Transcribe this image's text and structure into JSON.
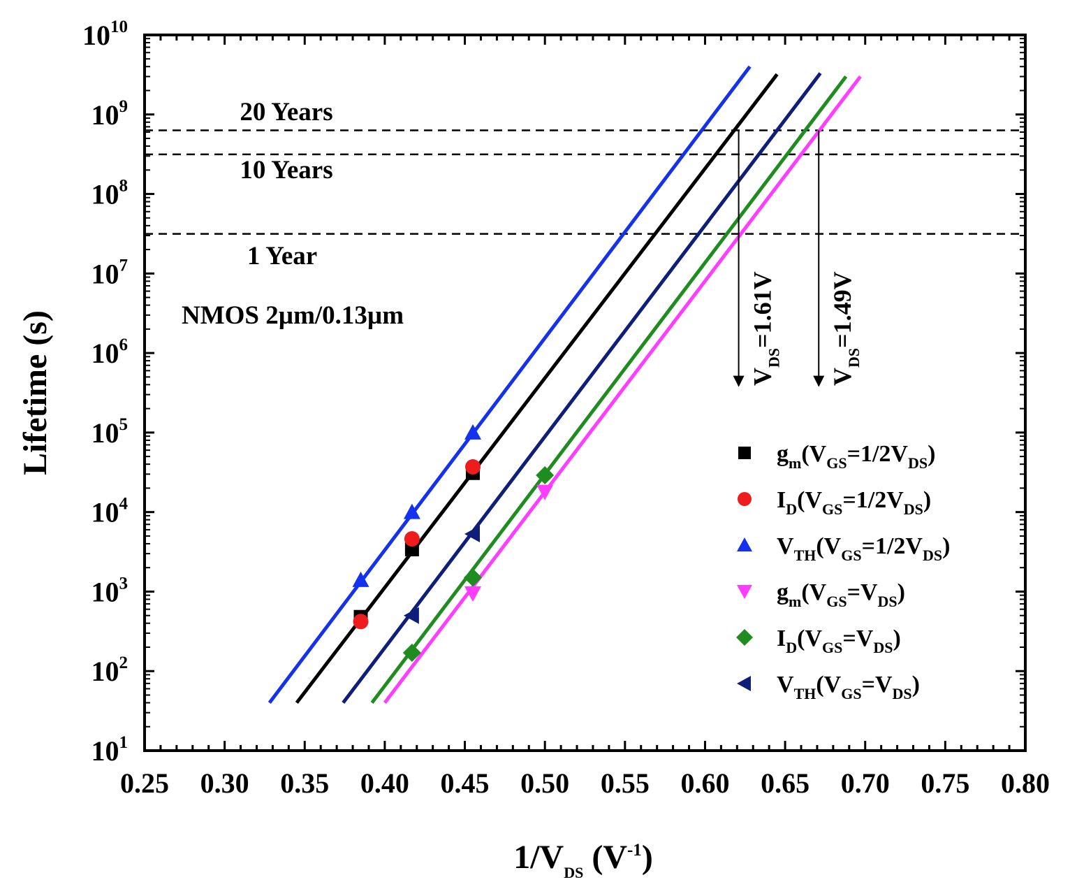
{
  "chart_data": {
    "type": "line",
    "xlabel": "1/V",
    "xlabel_sub": "DS",
    "xlabel_unit_prefix": "(V",
    "xlabel_unit_exp": "-1",
    "xlabel_unit_suffix": ")",
    "ylabel": "Lifetime (s)",
    "xlim": [
      0.25,
      0.8
    ],
    "ylim": [
      10,
      10000000000
    ],
    "y_scale": "log",
    "grid": false,
    "x_ticks": [
      "0.25",
      "0.30",
      "0.35",
      "0.40",
      "0.45",
      "0.50",
      "0.55",
      "0.60",
      "0.65",
      "0.70",
      "0.75",
      "0.80"
    ],
    "y_ticks": [
      {
        "base": "10",
        "exp": "1",
        "value": 10
      },
      {
        "base": "10",
        "exp": "2",
        "value": 100
      },
      {
        "base": "10",
        "exp": "3",
        "value": 1000
      },
      {
        "base": "10",
        "exp": "4",
        "value": 10000
      },
      {
        "base": "10",
        "exp": "5",
        "value": 100000
      },
      {
        "base": "10",
        "exp": "6",
        "value": 1000000
      },
      {
        "base": "10",
        "exp": "7",
        "value": 10000000
      },
      {
        "base": "10",
        "exp": "8",
        "value": 100000000
      },
      {
        "base": "10",
        "exp": "9",
        "value": 1000000000
      },
      {
        "base": "10",
        "exp": "10",
        "value": 10000000000
      }
    ],
    "device_label": "NMOS 2µm/0.13µm",
    "reference_lines": [
      {
        "label": "20 Years",
        "y": 631000000
      },
      {
        "label": "10 Years",
        "y": 315000000
      },
      {
        "label": "1 Year",
        "y": 31500000
      }
    ],
    "arrows": [
      {
        "x": 0.621,
        "y_from": 631000000,
        "y_to": 1000000,
        "label_main": "V",
        "label_sub": "DS",
        "label_rest": "=1.61V"
      },
      {
        "x": 0.671,
        "y_from": 631000000,
        "y_to": 1000000,
        "label_main": "V",
        "label_sub": "DS",
        "label_rest": "=1.49V"
      }
    ],
    "series": [
      {
        "name": "gm(VGS=1/2VDS)",
        "legend_parts": [
          "g",
          "m",
          "(V",
          "GS",
          "=1/2V",
          "DS",
          ")"
        ],
        "color": "#000000",
        "marker": "square",
        "points": [
          [
            0.385,
            480
          ],
          [
            0.417,
            3400
          ],
          [
            0.455,
            31000
          ]
        ],
        "fit": [
          [
            0.345,
            40
          ],
          [
            0.645,
            3200000000
          ]
        ]
      },
      {
        "name": "ID(VGS=1/2VDS)",
        "legend_parts": [
          "I",
          "D",
          "(V",
          "GS",
          "=1/2V",
          "DS",
          ")"
        ],
        "color": "#ee1c1c",
        "marker": "circle",
        "points": [
          [
            0.385,
            420
          ],
          [
            0.417,
            4600
          ],
          [
            0.455,
            37000
          ]
        ],
        "fit": null
      },
      {
        "name": "VTH(VGS=1/2VDS)",
        "legend_parts": [
          "V",
          "TH",
          "(V",
          "GS",
          "=1/2V",
          "DS",
          ")"
        ],
        "color": "#1432ee",
        "marker": "triangle-up",
        "points": [
          [
            0.385,
            1400
          ],
          [
            0.417,
            10000
          ],
          [
            0.455,
            100000
          ]
        ],
        "fit": [
          [
            0.328,
            40
          ],
          [
            0.628,
            4000000000
          ]
        ]
      },
      {
        "name": "gm(VGS=VDS)",
        "legend_parts": [
          "g",
          "m",
          "(V",
          "GS",
          "=V",
          "DS",
          ")"
        ],
        "color": "#ff3cff",
        "marker": "triangle-down",
        "points": [
          [
            0.455,
            950
          ],
          [
            0.5,
            18000
          ]
        ],
        "fit": [
          [
            0.4,
            40
          ],
          [
            0.697,
            3000000000
          ]
        ]
      },
      {
        "name": "ID(VGS=VDS)",
        "legend_parts": [
          "I",
          "D",
          "(V",
          "GS",
          "=V",
          "DS",
          ")"
        ],
        "color": "#1e8c1e",
        "marker": "diamond",
        "points": [
          [
            0.417,
            170
          ],
          [
            0.455,
            1500
          ],
          [
            0.5,
            29000
          ]
        ],
        "fit": [
          [
            0.392,
            40
          ],
          [
            0.688,
            3000000000
          ]
        ]
      },
      {
        "name": "VTH(VGS=VDS)",
        "legend_parts": [
          "V",
          "TH",
          "(V",
          "GS",
          "=V",
          "DS",
          ")"
        ],
        "color": "#0f1e78",
        "marker": "triangle-left",
        "points": [
          [
            0.417,
            500
          ],
          [
            0.455,
            5300
          ]
        ],
        "fit": [
          [
            0.374,
            40
          ],
          [
            0.672,
            3300000000
          ]
        ]
      }
    ]
  }
}
